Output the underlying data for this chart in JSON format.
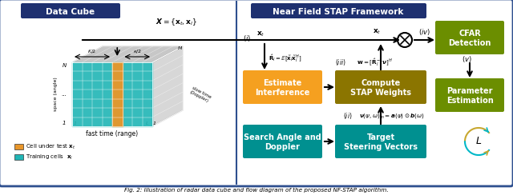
{
  "title_left": "Data Cube",
  "title_right": "Near Field STAP Framework",
  "fig_caption": "Fig. 2: Illustration of radar data cube and flow diagram of the proposed NF-STAP algorithm.",
  "bg_color": "#ffffff",
  "outer_border_color": "#2E4F8F",
  "divider_color": "#2E4F8F",
  "title_bg_color": "#1E3070",
  "title_text_color": "#ffffff",
  "box_orange_color": "#F5A020",
  "box_dark_yellow_color": "#8B7500",
  "box_teal_color": "#009090",
  "box_olive_color": "#6B8E00",
  "cube_teal": "#20B5B5",
  "cube_gray": "#B0B0B0",
  "cube_orange": "#E8962A",
  "loop_gold": "#C8A830",
  "loop_teal": "#00B8C8"
}
